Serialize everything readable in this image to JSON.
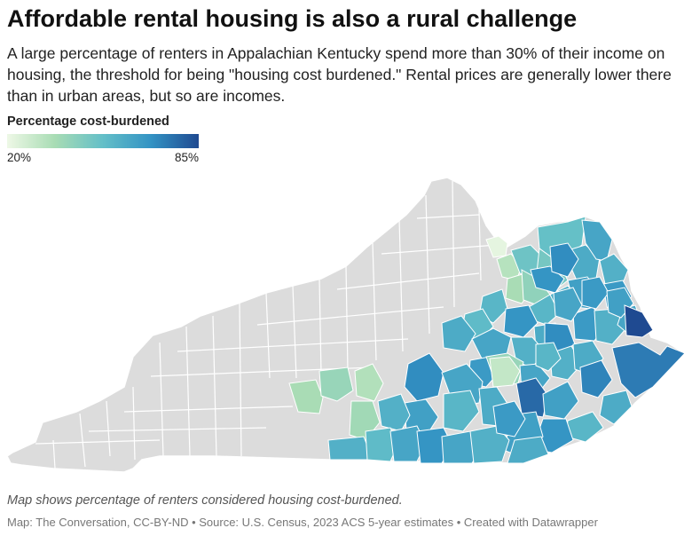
{
  "header": {
    "title": "Affordable rental housing is also a rural challenge",
    "description": "A large percentage of renters in Appalachian Kentucky spend more than 30% of their income on housing, the threshold for being \"housing cost burdened.\" Rental prices are generally lower there than in urban areas, but so are incomes."
  },
  "legend": {
    "title": "Percentage cost-burdened",
    "min_label": "20%",
    "max_label": "85%",
    "min_value": 20,
    "max_value": 85,
    "colors": [
      "#eef8e6",
      "#a8dcb4",
      "#63bfc8",
      "#3393c4",
      "#1f4a91"
    ]
  },
  "map": {
    "region": "Kentucky counties",
    "no_data_color": "#dcdcdc",
    "border_color": "#ffffff",
    "shaded_counties_percent": [
      22,
      33,
      36,
      52,
      50,
      48,
      42,
      56,
      58,
      60,
      62,
      58,
      64,
      66,
      56,
      68,
      60,
      54,
      60,
      62,
      58,
      70,
      66,
      58,
      62,
      66,
      40,
      62,
      30,
      58,
      60,
      78,
      64,
      72,
      74,
      60,
      56,
      68,
      64,
      70,
      62,
      56,
      60,
      64,
      58,
      36,
      40,
      34,
      38,
      58,
      54,
      62,
      68,
      62,
      58,
      66,
      60,
      68,
      66,
      62,
      70,
      64,
      85,
      56
    ]
  },
  "footer": {
    "notes": "Map shows percentage of renters considered housing cost-burdened.",
    "credits": "Map: The Conversation, CC-BY-ND • Source: U.S. Census, 2023 ACS 5-year estimates • Created with Datawrapper"
  }
}
